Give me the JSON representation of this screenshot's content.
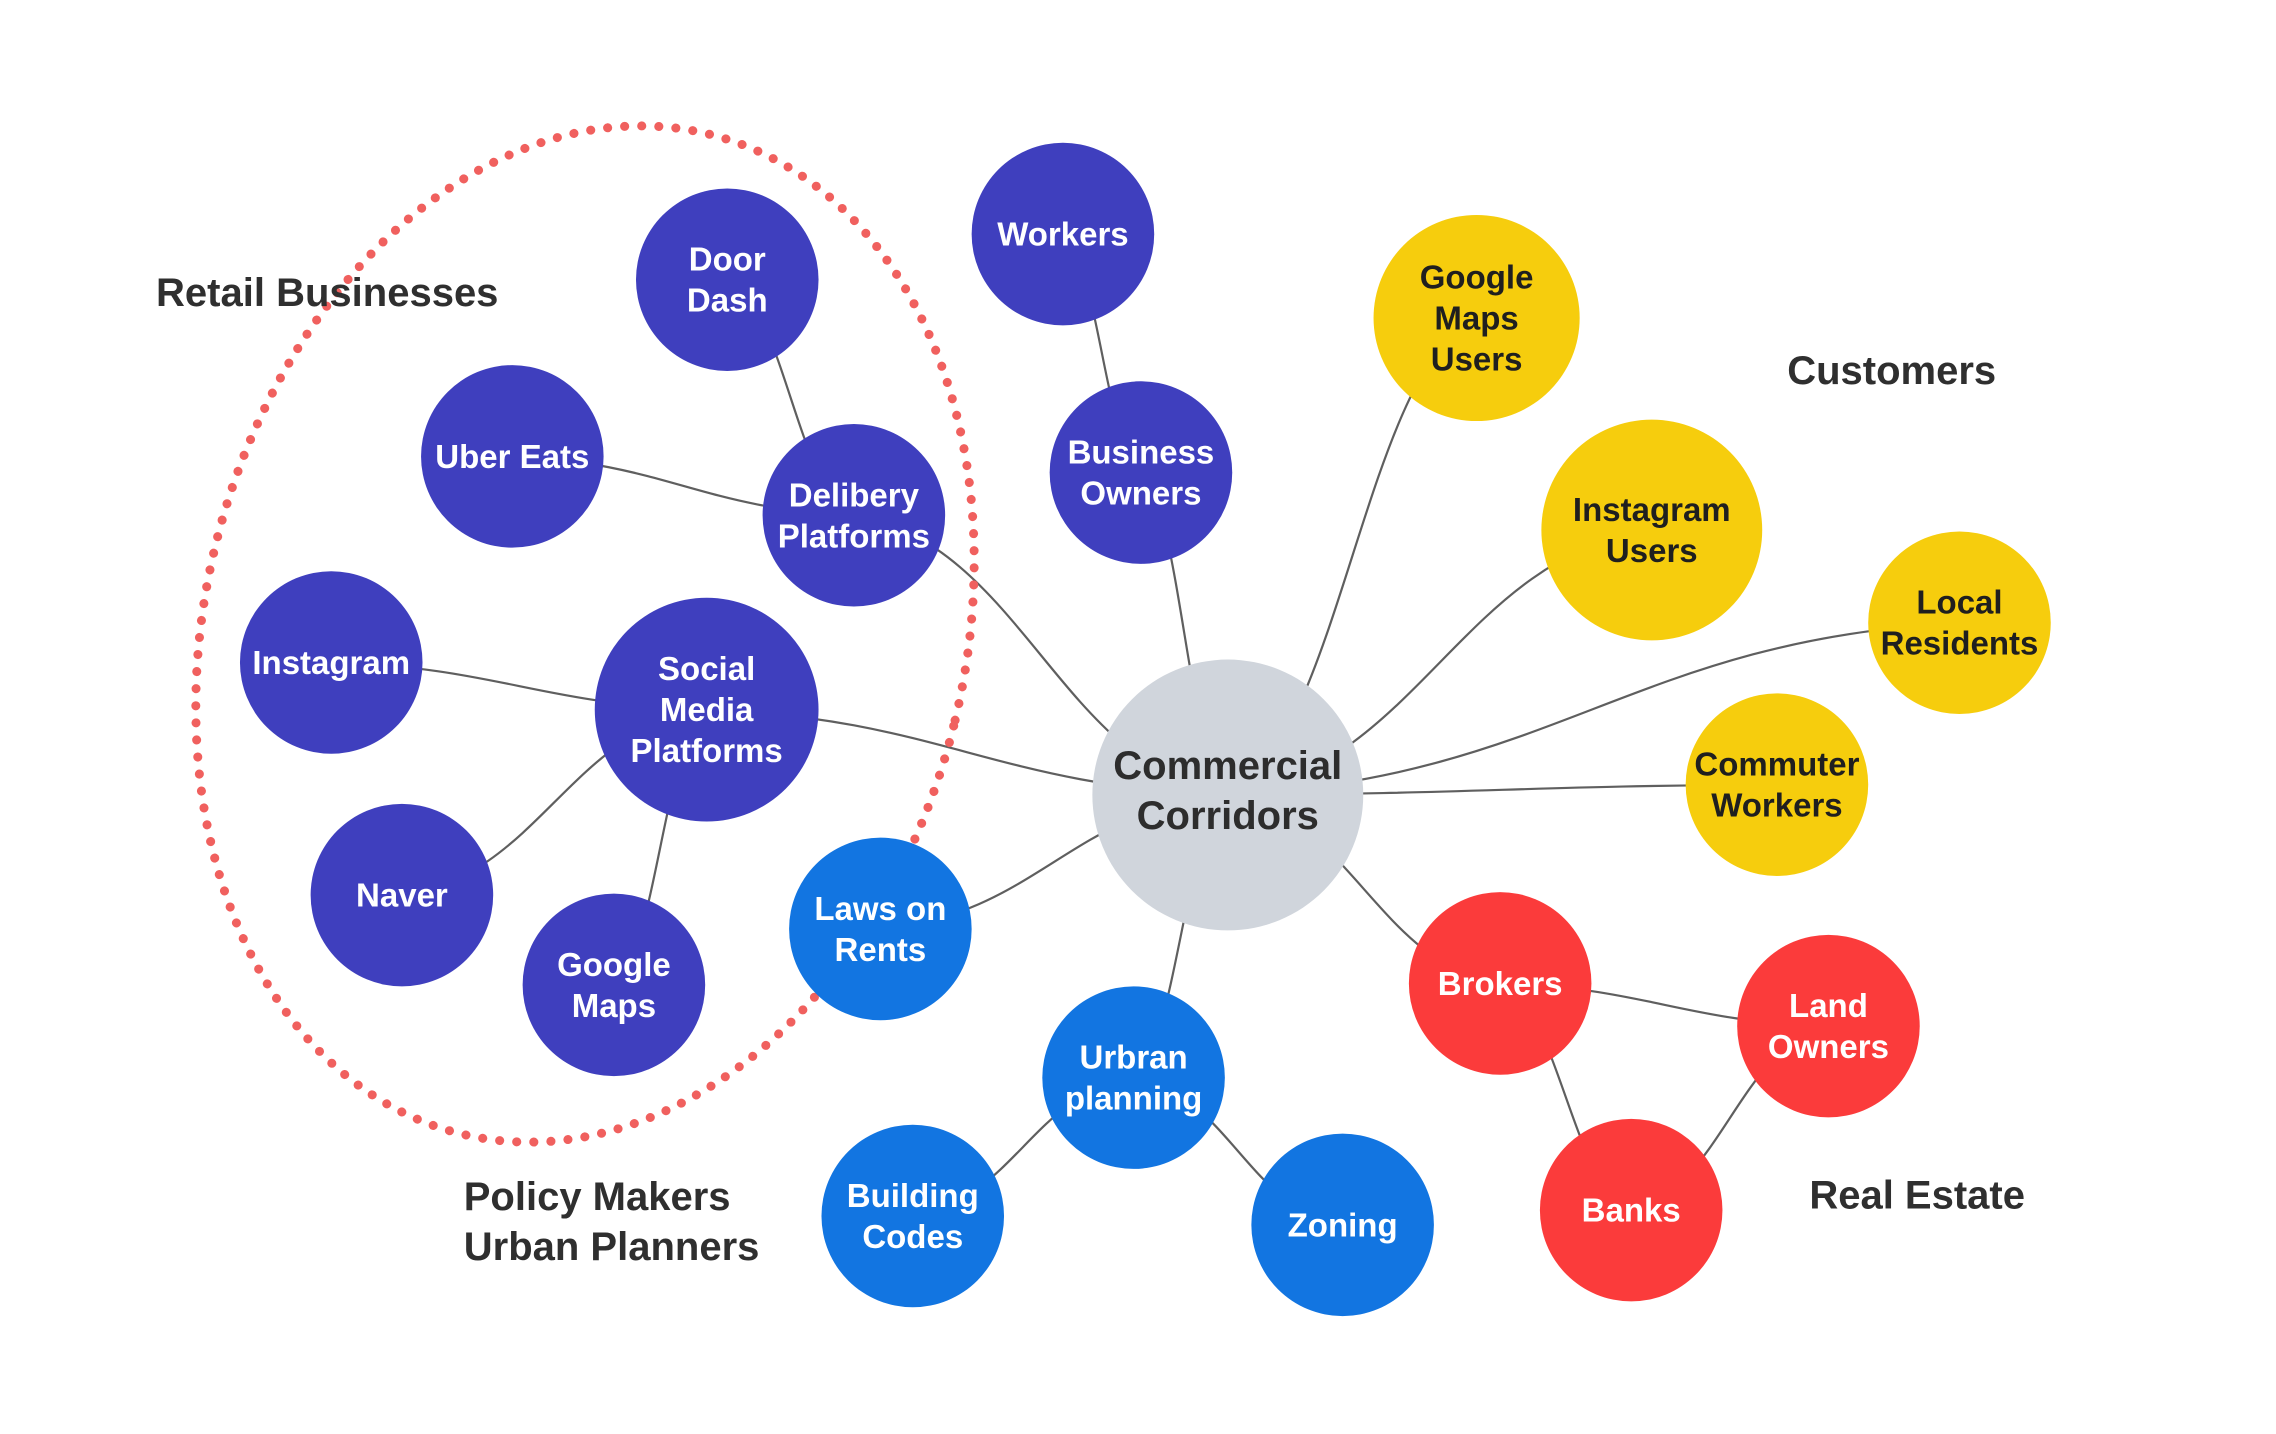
{
  "center": {
    "lines": [
      "Commercial",
      "Corridors"
    ],
    "color": "#d0d5dc"
  },
  "colors": {
    "retail": "#3f3fbe",
    "customers": "#f6cd0d",
    "real_estate": "#fb3b3b",
    "policy": "#1275e1",
    "retail_boundary": "#f0605e"
  },
  "group_labels": [
    {
      "id": "retail",
      "text": "Retail Businesses"
    },
    {
      "id": "customers",
      "text": "Customers"
    },
    {
      "id": "real_estate",
      "text": "Real Estate"
    },
    {
      "id": "policy_1",
      "text": "Policy Makers"
    },
    {
      "id": "policy_2",
      "text": "Urban Planners"
    }
  ],
  "nodes": [
    {
      "id": "door-dash",
      "group": "retail",
      "lines": [
        "Door",
        "Dash"
      ]
    },
    {
      "id": "uber-eats",
      "group": "retail",
      "lines": [
        "Uber Eats"
      ]
    },
    {
      "id": "delibery-platforms",
      "group": "retail",
      "lines": [
        "Delibery",
        "Platforms"
      ]
    },
    {
      "id": "instagram",
      "group": "retail",
      "lines": [
        "Instagram"
      ]
    },
    {
      "id": "social-media-platforms",
      "group": "retail",
      "lines": [
        "Social",
        "Media",
        "Platforms"
      ]
    },
    {
      "id": "naver",
      "group": "retail",
      "lines": [
        "Naver"
      ]
    },
    {
      "id": "google-maps",
      "group": "retail",
      "lines": [
        "Google",
        "Maps"
      ]
    },
    {
      "id": "workers",
      "group": "retail",
      "lines": [
        "Workers"
      ]
    },
    {
      "id": "business-owners",
      "group": "retail",
      "lines": [
        "Business",
        "Owners"
      ]
    },
    {
      "id": "google-maps-users",
      "group": "customers",
      "lines": [
        "Google",
        "Maps",
        "Users"
      ]
    },
    {
      "id": "instagram-users",
      "group": "customers",
      "lines": [
        "Instagram",
        "Users"
      ]
    },
    {
      "id": "local-residents",
      "group": "customers",
      "lines": [
        "Local",
        "Residents"
      ]
    },
    {
      "id": "commuter-workers",
      "group": "customers",
      "lines": [
        "Commuter",
        "Workers"
      ]
    },
    {
      "id": "brokers",
      "group": "real_estate",
      "lines": [
        "Brokers"
      ]
    },
    {
      "id": "land-owners",
      "group": "real_estate",
      "lines": [
        "Land",
        "Owners"
      ]
    },
    {
      "id": "banks",
      "group": "real_estate",
      "lines": [
        "Banks"
      ]
    },
    {
      "id": "laws-on-rents",
      "group": "policy",
      "lines": [
        "Laws on",
        "Rents"
      ]
    },
    {
      "id": "urbran-planning",
      "group": "policy",
      "lines": [
        "Urbran",
        "planning"
      ]
    },
    {
      "id": "building-codes",
      "group": "policy",
      "lines": [
        "Building",
        "Codes"
      ]
    },
    {
      "id": "zoning",
      "group": "policy",
      "lines": [
        "Zoning"
      ]
    }
  ],
  "edges": [
    [
      "door-dash",
      "delibery-platforms"
    ],
    [
      "uber-eats",
      "delibery-platforms"
    ],
    [
      "delibery-platforms",
      "center"
    ],
    [
      "instagram",
      "social-media-platforms"
    ],
    [
      "naver",
      "social-media-platforms"
    ],
    [
      "google-maps",
      "social-media-platforms"
    ],
    [
      "social-media-platforms",
      "center"
    ],
    [
      "workers",
      "business-owners"
    ],
    [
      "business-owners",
      "center"
    ],
    [
      "google-maps-users",
      "center"
    ],
    [
      "instagram-users",
      "center"
    ],
    [
      "local-residents",
      "center"
    ],
    [
      "commuter-workers",
      "center"
    ],
    [
      "brokers",
      "center"
    ],
    [
      "brokers",
      "land-owners"
    ],
    [
      "brokers",
      "banks"
    ],
    [
      "land-owners",
      "banks"
    ],
    [
      "laws-on-rents",
      "center"
    ],
    [
      "urbran-planning",
      "center"
    ],
    [
      "building-codes",
      "urbran-planning"
    ],
    [
      "zoning",
      "urbran-planning"
    ]
  ]
}
